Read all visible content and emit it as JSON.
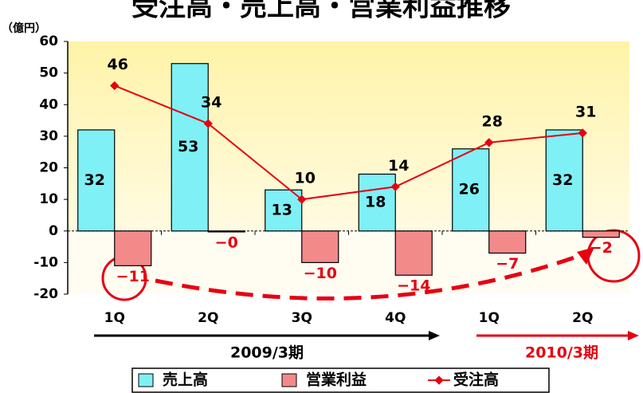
{
  "chart_data": {
    "type": "bar",
    "title": "受注高・売上高・営業利益推移",
    "y_label": "（億円）",
    "categories": [
      "1Q",
      "2Q",
      "3Q",
      "4Q",
      "1Q",
      "2Q"
    ],
    "groups": [
      "2009/3期",
      "2010/3期"
    ],
    "series": [
      {
        "name": "売上高",
        "type": "bar",
        "color": "#7ff0f5",
        "values": [
          32,
          53,
          13,
          18,
          26,
          32
        ]
      },
      {
        "name": "営業利益",
        "type": "bar",
        "color": "#f28a8a",
        "values": [
          -11,
          -0.3,
          -10,
          -14,
          -7,
          -2
        ],
        "value_labels": [
          "−11",
          "−0",
          "−10",
          "−14",
          "−7",
          "−2"
        ]
      },
      {
        "name": "受注高",
        "type": "line",
        "color": "#e60012",
        "values": [
          46,
          34,
          10,
          14,
          28,
          31
        ]
      }
    ],
    "ylim": [
      -20,
      60
    ],
    "yticks": [
      -20,
      -10,
      0,
      10,
      20,
      30,
      40,
      50,
      60
    ],
    "grid": false,
    "legend": "bottom"
  }
}
